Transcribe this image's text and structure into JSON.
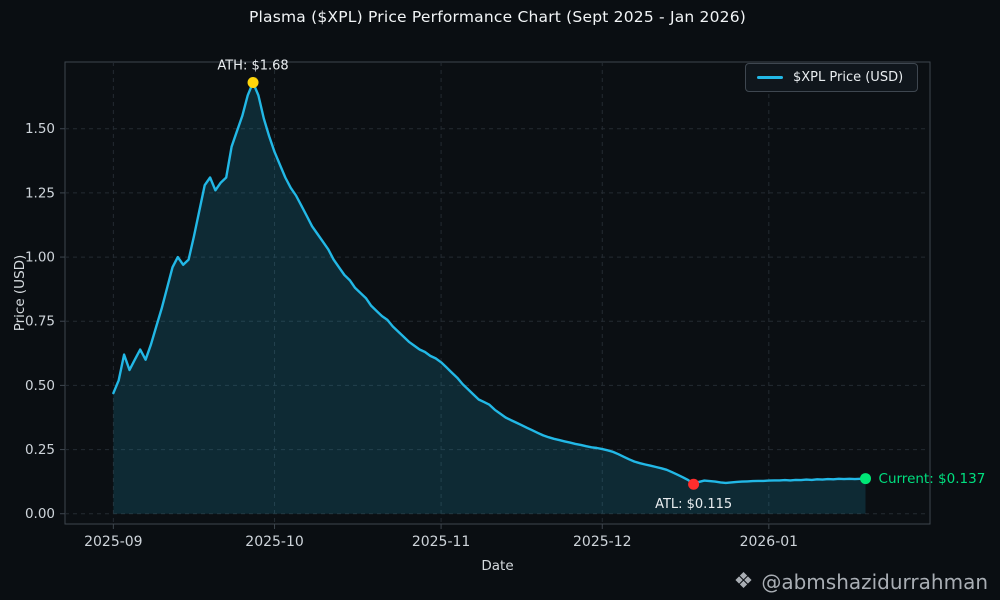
{
  "title": "Plasma ($XPL) Price Performance Chart (Sept 2025 - Jan 2026)",
  "xlabel": "Date",
  "ylabel": "Price (USD)",
  "legend": {
    "label": "$XPL Price (USD)"
  },
  "watermark": {
    "handle": "@abmshazidurrahman",
    "icon": "binance-diamond-icon",
    "icon_glyph": "❖"
  },
  "colors": {
    "background": "#0a0e12",
    "plot_background": "#0b0f13",
    "spine": "#3e464e",
    "grid": "#242b32",
    "tick_text": "#ced4da",
    "line": "#22b8e6",
    "fill": "rgba(34,184,230,0.16)",
    "ath_dot": "#ffd60a",
    "atl_dot": "#ff2d2d",
    "current_dot": "#00e676",
    "current_text": "#00df7f",
    "annotation_text": "#e9edf0"
  },
  "chart_data": {
    "type": "line",
    "title": "Plasma ($XPL) Price Performance Chart (Sept 2025 - Jan 2026)",
    "xlabel": "Date",
    "ylabel": "Price (USD)",
    "x_start_date": "2025-09-01",
    "x_frequency": "daily",
    "x_end_date": "2026-01-19",
    "ylim": [
      -0.04,
      1.76
    ],
    "x_domain_days": [
      -9,
      152
    ],
    "grid": "dashed",
    "legend_position": "upper right",
    "yticks": {
      "values": [
        0.0,
        0.25,
        0.5,
        0.75,
        1.0,
        1.25,
        1.5
      ],
      "labels": [
        "0.00",
        "0.25",
        "0.50",
        "0.75",
        "1.00",
        "1.25",
        "1.50"
      ]
    },
    "xticks": {
      "day_offsets": [
        0,
        30,
        61,
        91,
        122
      ],
      "labels": [
        "2025-09",
        "2025-10",
        "2025-11",
        "2025-12",
        "2026-01"
      ]
    },
    "series": [
      {
        "name": "$XPL Price (USD)",
        "values": [
          0.47,
          0.52,
          0.62,
          0.56,
          0.6,
          0.64,
          0.6,
          0.66,
          0.73,
          0.8,
          0.88,
          0.96,
          1.0,
          0.97,
          0.99,
          1.08,
          1.18,
          1.28,
          1.31,
          1.26,
          1.29,
          1.31,
          1.43,
          1.49,
          1.55,
          1.63,
          1.68,
          1.63,
          1.54,
          1.47,
          1.41,
          1.36,
          1.31,
          1.27,
          1.24,
          1.2,
          1.16,
          1.12,
          1.09,
          1.06,
          1.03,
          0.99,
          0.96,
          0.93,
          0.91,
          0.88,
          0.86,
          0.84,
          0.81,
          0.79,
          0.77,
          0.755,
          0.73,
          0.71,
          0.69,
          0.67,
          0.655,
          0.64,
          0.63,
          0.615,
          0.605,
          0.59,
          0.57,
          0.55,
          0.53,
          0.505,
          0.485,
          0.465,
          0.445,
          0.435,
          0.425,
          0.405,
          0.39,
          0.375,
          0.365,
          0.355,
          0.345,
          0.335,
          0.325,
          0.315,
          0.305,
          0.298,
          0.292,
          0.287,
          0.282,
          0.277,
          0.272,
          0.268,
          0.263,
          0.259,
          0.256,
          0.252,
          0.247,
          0.241,
          0.232,
          0.222,
          0.212,
          0.203,
          0.197,
          0.192,
          0.187,
          0.182,
          0.177,
          0.171,
          0.162,
          0.152,
          0.142,
          0.131,
          0.115,
          0.124,
          0.129,
          0.127,
          0.125,
          0.122,
          0.12,
          0.122,
          0.124,
          0.125,
          0.126,
          0.127,
          0.128,
          0.128,
          0.129,
          0.13,
          0.13,
          0.131,
          0.13,
          0.132,
          0.131,
          0.133,
          0.132,
          0.134,
          0.133,
          0.135,
          0.134,
          0.136,
          0.135,
          0.136,
          0.135,
          0.136,
          0.137
        ]
      }
    ],
    "annotations": [
      {
        "id": "ath",
        "label": "ATH: $1.68",
        "date": "2025-09-27",
        "day": 26,
        "value": 1.68,
        "placement": "above"
      },
      {
        "id": "atl",
        "label": "ATL: $0.115",
        "date": "2025-12-18",
        "day": 108,
        "value": 0.115,
        "placement": "below"
      },
      {
        "id": "current",
        "label": "Current: $0.137",
        "date": "2026-01-19",
        "day": 140,
        "value": 0.137,
        "placement": "right"
      }
    ]
  }
}
